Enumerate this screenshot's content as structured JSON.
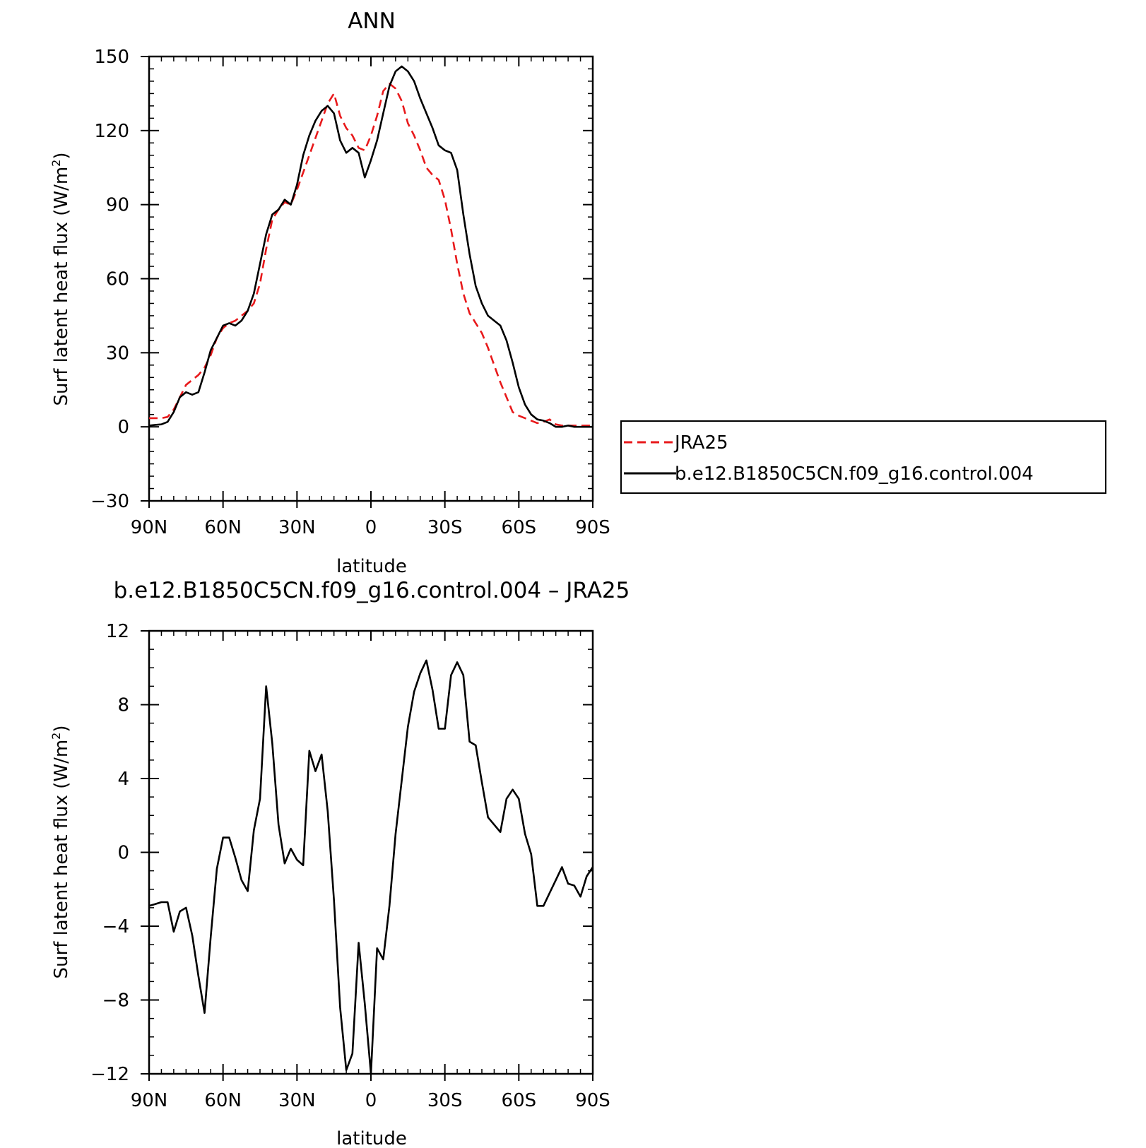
{
  "chart_data": [
    {
      "type": "line",
      "title": "ANN",
      "xlabel": "latitude",
      "ylabel_main": "Surf latent heat flux (W/m",
      "ylabel_sup": "2",
      "ylabel_close": ")",
      "xlim": [
        90,
        -90
      ],
      "ylim": [
        -30,
        150
      ],
      "xticks": [
        90,
        60,
        30,
        0,
        -30,
        -60,
        -90
      ],
      "xticklabels": [
        "90N",
        "60N",
        "30N",
        "0",
        "30S",
        "60S",
        "90S"
      ],
      "yticks": [
        -30,
        0,
        30,
        60,
        90,
        120,
        150
      ],
      "yticklabels": [
        "−30",
        "0",
        "30",
        "60",
        "90",
        "120",
        "150"
      ],
      "legend_position": "right",
      "series": [
        {
          "name": "JRA25",
          "color": "#e8191b",
          "dash": "dashed",
          "x": [
            90,
            87.5,
            85,
            82.5,
            80,
            77.5,
            75,
            72.5,
            70,
            67.5,
            65,
            62.5,
            60,
            57.5,
            55,
            52.5,
            50,
            47.5,
            45,
            42.5,
            40,
            37.5,
            35,
            32.5,
            30,
            27.5,
            25,
            22.5,
            20,
            17.5,
            15,
            12.5,
            10,
            7.5,
            5,
            2.5,
            0,
            -2.5,
            -5,
            -7.5,
            -10,
            -12.5,
            -15,
            -17.5,
            -20,
            -22.5,
            -25,
            -27.5,
            -30,
            -32.5,
            -35,
            -37.5,
            -40,
            -42.5,
            -45,
            -47.5,
            -50,
            -52.5,
            -55,
            -57.5,
            -60,
            -62.5,
            -65,
            -67.5,
            -70,
            -72.5,
            -75,
            -77.5,
            -80,
            -82.5,
            -85,
            -87.5,
            -90
          ],
          "y": [
            3.5,
            3.5,
            3.5,
            4,
            7,
            12,
            17,
            19,
            21,
            24,
            29,
            36,
            40,
            42,
            43,
            45,
            47,
            50,
            58,
            72,
            84,
            88,
            91,
            90,
            96,
            103,
            110,
            117,
            124,
            131,
            135,
            126,
            121,
            118,
            113,
            112,
            118,
            126,
            136,
            139,
            137,
            132,
            123,
            118,
            112,
            105,
            102,
            100,
            92,
            80,
            66,
            54,
            46,
            42,
            38,
            32,
            25,
            18,
            12,
            6,
            4.5,
            3.5,
            2.5,
            1.5,
            2,
            3,
            1,
            0.5,
            0.5,
            0.5,
            0.5,
            0.5,
            0.5
          ]
        },
        {
          "name": "b.e12.B1850C5CN.f09_g16.control.004",
          "color": "#000000",
          "dash": "solid",
          "x": [
            90,
            87.5,
            85,
            82.5,
            80,
            77.5,
            75,
            72.5,
            70,
            67.5,
            65,
            62.5,
            60,
            57.5,
            55,
            52.5,
            50,
            47.5,
            45,
            42.5,
            40,
            37.5,
            35,
            32.5,
            30,
            27.5,
            25,
            22.5,
            20,
            17.5,
            15,
            12.5,
            10,
            7.5,
            5,
            2.5,
            0,
            -2.5,
            -5,
            -7.5,
            -10,
            -12.5,
            -15,
            -17.5,
            -20,
            -22.5,
            -25,
            -27.5,
            -30,
            -32.5,
            -35,
            -37.5,
            -40,
            -42.5,
            -45,
            -47.5,
            -50,
            -52.5,
            -55,
            -57.5,
            -60,
            -62.5,
            -65,
            -67.5,
            -70,
            -72.5,
            -75,
            -77.5,
            -80,
            -82.5,
            -85,
            -87.5,
            -90
          ],
          "y": [
            0.5,
            0.8,
            1,
            2,
            6,
            12,
            14,
            13,
            14,
            22,
            31,
            36,
            41,
            42,
            41,
            43,
            47,
            54,
            66,
            78,
            86,
            88,
            92,
            90,
            98,
            110,
            118,
            124,
            128,
            130,
            127,
            116,
            111,
            113,
            111,
            101,
            108,
            116,
            127,
            138,
            144,
            146,
            144,
            140,
            133,
            127,
            121,
            114,
            112,
            111,
            104,
            86,
            70,
            57,
            50,
            45,
            43,
            41,
            35,
            26,
            16,
            9,
            5,
            3,
            2.5,
            1.5,
            0,
            0,
            0.5,
            0,
            0,
            0,
            0
          ]
        }
      ]
    },
    {
      "type": "line",
      "title": "b.e12.B1850C5CN.f09_g16.control.004 – JRA25",
      "xlabel": "latitude",
      "ylabel_main": "Surf latent heat flux (W/m",
      "ylabel_sup": "2",
      "ylabel_close": ")",
      "xlim": [
        90,
        -90
      ],
      "ylim": [
        -12,
        12
      ],
      "xticks": [
        90,
        60,
        30,
        0,
        -30,
        -60,
        -90
      ],
      "xticklabels": [
        "90N",
        "60N",
        "30N",
        "0",
        "30S",
        "60S",
        "90S"
      ],
      "yticks": [
        -12,
        -8,
        -4,
        0,
        4,
        8,
        12
      ],
      "yticklabels": [
        "−12",
        "−8",
        "−4",
        "0",
        "4",
        "8",
        "12"
      ],
      "series": [
        {
          "color": "#000000",
          "dash": "solid",
          "x": [
            90,
            87.5,
            85,
            82.5,
            80,
            77.5,
            75,
            72.5,
            70,
            67.5,
            65,
            62.5,
            60,
            57.5,
            55,
            52.5,
            50,
            47.5,
            45,
            42.5,
            40,
            37.5,
            35,
            32.5,
            30,
            27.5,
            25,
            22.5,
            20,
            17.5,
            15,
            12.5,
            10,
            7.5,
            5,
            2.5,
            0,
            -2.5,
            -5,
            -7.5,
            -10,
            -12.5,
            -15,
            -17.5,
            -20,
            -22.5,
            -25,
            -27.5,
            -30,
            -32.5,
            -35,
            -37.5,
            -40,
            -42.5,
            -45,
            -47.5,
            -50,
            -52.5,
            -55,
            -57.5,
            -60,
            -62.5,
            -65,
            -67.5,
            -70,
            -72.5,
            -75,
            -77.5,
            -80,
            -82.5,
            -85,
            -87.5,
            -90
          ],
          "y": [
            -2.9,
            -2.8,
            -2.7,
            -2.7,
            -4.3,
            -3.2,
            -3.0,
            -4.5,
            -6.7,
            -8.7,
            -4.6,
            -0.9,
            0.8,
            0.8,
            -0.3,
            -1.5,
            -2.1,
            1.2,
            2.9,
            9.0,
            5.9,
            1.5,
            -0.6,
            0.2,
            -0.4,
            -0.7,
            5.5,
            4.4,
            5.3,
            2.2,
            -2.6,
            -8.4,
            -11.8,
            -10.9,
            -4.9,
            -8.2,
            -12.0,
            -5.2,
            -5.8,
            -2.9,
            1.0,
            3.9,
            6.8,
            8.7,
            9.7,
            10.4,
            8.8,
            6.7,
            6.7,
            9.6,
            10.3,
            9.6,
            6.0,
            5.8,
            3.8,
            1.9,
            1.5,
            1.1,
            2.9,
            3.4,
            2.9,
            1.0,
            -0.1,
            -2.9,
            -2.9,
            -2.2,
            -1.5,
            -0.8,
            -1.7,
            -1.8,
            -2.4,
            -1.3,
            -0.8
          ]
        }
      ]
    }
  ]
}
